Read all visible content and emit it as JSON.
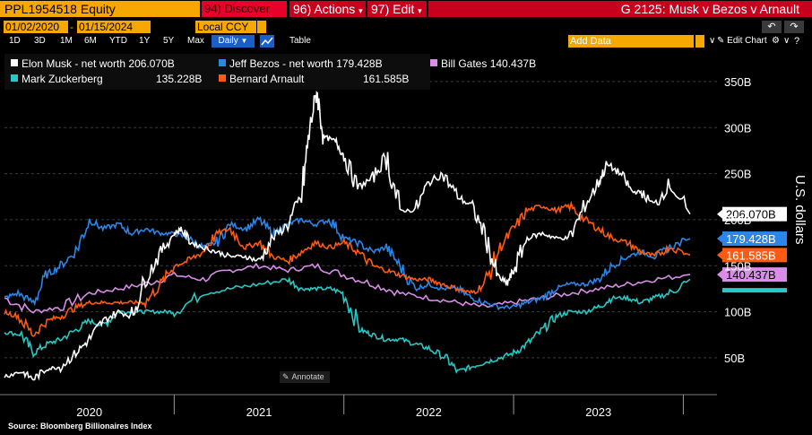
{
  "header": {
    "ticker": "PPL1954518 Equity",
    "discover": "94) Discover",
    "actions": "96) Actions",
    "edit": "97) Edit",
    "title": "G 2125: Musk v Bezos v Arnault"
  },
  "controls": {
    "start_date": "01/02/2020",
    "end_date": "01/15/2024",
    "currency": "Local CCY",
    "ranges": [
      "1D",
      "3D",
      "1M",
      "6M",
      "YTD",
      "1Y",
      "5Y",
      "Max"
    ],
    "frequency": "Daily",
    "table_label": "Table",
    "add_data_placeholder": "Add Data",
    "edit_chart": "Edit Chart",
    "annotate": "Annotate"
  },
  "source": "Source: Bloomberg Billionaires Index",
  "colors": {
    "musk": "#ffffff",
    "bezos": "#2a86e8",
    "gates": "#d98ce8",
    "zuckerberg": "#26c9c4",
    "arnault": "#ff5a12",
    "brand": "#f6a800",
    "red": "#c8001e"
  },
  "chart_data": {
    "type": "line",
    "title": "G 2125: Musk v Bezos v Arnault",
    "ylabel": "U.S. dollars",
    "xlabel": "",
    "ylim": [
      10,
      385
    ],
    "yticks": [
      {
        "value": 50,
        "label": "50B"
      },
      {
        "value": 100,
        "label": "100B"
      },
      {
        "value": 150,
        "label": "150B"
      },
      {
        "value": 200,
        "label": "200B"
      },
      {
        "value": 250,
        "label": "250B"
      },
      {
        "value": 300,
        "label": "300B"
      },
      {
        "value": 350,
        "label": "350B"
      }
    ],
    "xlim": [
      2020.0,
      2024.04
    ],
    "year_labels": [
      {
        "x": 2020.5,
        "label": "2020"
      },
      {
        "x": 2021.5,
        "label": "2021"
      },
      {
        "x": 2022.5,
        "label": "2022"
      },
      {
        "x": 2023.5,
        "label": "2023"
      }
    ],
    "year_ticks": [
      2021.0,
      2022.0,
      2023.0,
      2024.0
    ],
    "legend_position": "top-left",
    "series": [
      {
        "key": "musk",
        "name": "Elon Musk - net worth",
        "last_label": "206.070B",
        "last": 206.07,
        "x": [
          2020.0,
          2020.1,
          2020.17,
          2020.25,
          2020.33,
          2020.42,
          2020.5,
          2020.58,
          2020.67,
          2020.75,
          2020.83,
          2020.92,
          2021.0,
          2021.04,
          2021.1,
          2021.17,
          2021.25,
          2021.33,
          2021.42,
          2021.5,
          2021.58,
          2021.67,
          2021.75,
          2021.8,
          2021.84,
          2021.88,
          2021.95,
          2022.0,
          2022.08,
          2022.17,
          2022.25,
          2022.33,
          2022.42,
          2022.5,
          2022.58,
          2022.67,
          2022.75,
          2022.83,
          2022.9,
          2022.96,
          2023.0,
          2023.08,
          2023.17,
          2023.25,
          2023.33,
          2023.42,
          2023.5,
          2023.55,
          2023.63,
          2023.7,
          2023.75,
          2023.83,
          2023.92,
          2024.04
        ],
        "values": [
          30,
          35,
          27,
          38,
          40,
          55,
          70,
          90,
          100,
          95,
          135,
          165,
          185,
          190,
          175,
          170,
          165,
          160,
          160,
          155,
          180,
          195,
          225,
          300,
          340,
          290,
          285,
          270,
          235,
          245,
          270,
          210,
          210,
          240,
          250,
          225,
          215,
          185,
          140,
          130,
          145,
          180,
          185,
          180,
          180,
          215,
          240,
          260,
          250,
          230,
          230,
          215,
          240,
          206.07
        ]
      },
      {
        "key": "bezos",
        "name": "Jeff Bezos - net worth",
        "last_label": "179.428B",
        "last": 179.428,
        "x": [
          2020.0,
          2020.08,
          2020.17,
          2020.25,
          2020.33,
          2020.42,
          2020.5,
          2020.58,
          2020.67,
          2020.75,
          2020.83,
          2020.92,
          2021.0,
          2021.08,
          2021.17,
          2021.25,
          2021.33,
          2021.42,
          2021.5,
          2021.58,
          2021.67,
          2021.75,
          2021.83,
          2021.92,
          2022.0,
          2022.08,
          2022.17,
          2022.25,
          2022.33,
          2022.42,
          2022.5,
          2022.58,
          2022.67,
          2022.75,
          2022.83,
          2022.92,
          2023.0,
          2023.08,
          2023.17,
          2023.25,
          2023.33,
          2023.42,
          2023.5,
          2023.58,
          2023.67,
          2023.75,
          2023.83,
          2023.92,
          2024.04
        ],
        "values": [
          115,
          120,
          110,
          140,
          150,
          165,
          200,
          190,
          195,
          185,
          190,
          185,
          185,
          180,
          170,
          175,
          195,
          190,
          200,
          185,
          195,
          200,
          195,
          200,
          180,
          175,
          165,
          170,
          150,
          125,
          130,
          125,
          125,
          115,
          110,
          105,
          105,
          110,
          115,
          125,
          130,
          130,
          135,
          150,
          160,
          165,
          160,
          170,
          179.428
        ]
      },
      {
        "key": "gates",
        "name": "Bill Gates",
        "last_label": "140.437B",
        "last": 140.437,
        "x": [
          2020.0,
          2020.17,
          2020.33,
          2020.5,
          2020.67,
          2020.83,
          2021.0,
          2021.17,
          2021.33,
          2021.5,
          2021.67,
          2021.83,
          2022.0,
          2022.17,
          2022.33,
          2022.5,
          2022.67,
          2022.83,
          2023.0,
          2023.17,
          2023.33,
          2023.5,
          2023.67,
          2023.83,
          2024.04
        ],
        "values": [
          115,
          100,
          105,
          120,
          125,
          130,
          140,
          135,
          145,
          150,
          145,
          150,
          140,
          130,
          120,
          115,
          110,
          105,
          110,
          115,
          120,
          125,
          130,
          135,
          140.437
        ]
      },
      {
        "key": "zuckerberg",
        "name": "Mark Zuckerberg",
        "last_label": "135.228B",
        "last": 135.228,
        "x": [
          2020.0,
          2020.1,
          2020.17,
          2020.25,
          2020.33,
          2020.42,
          2020.5,
          2020.58,
          2020.67,
          2020.75,
          2020.83,
          2020.92,
          2021.0,
          2021.17,
          2021.33,
          2021.5,
          2021.67,
          2021.75,
          2021.83,
          2021.92,
          2022.0,
          2022.1,
          2022.17,
          2022.25,
          2022.33,
          2022.42,
          2022.5,
          2022.6,
          2022.67,
          2022.75,
          2022.83,
          2022.92,
          2023.0,
          2023.08,
          2023.17,
          2023.25,
          2023.33,
          2023.42,
          2023.5,
          2023.58,
          2023.67,
          2023.75,
          2023.83,
          2023.92,
          2024.04
        ],
        "values": [
          78,
          75,
          55,
          65,
          70,
          80,
          90,
          85,
          100,
          100,
          100,
          100,
          100,
          120,
          125,
          130,
          135,
          125,
          125,
          125,
          120,
          80,
          75,
          70,
          70,
          65,
          60,
          50,
          35,
          40,
          45,
          50,
          55,
          65,
          80,
          95,
          100,
          100,
          105,
          115,
          115,
          110,
          115,
          120,
          135.228
        ]
      },
      {
        "key": "arnault",
        "name": "Bernard Arnault",
        "last_label": "161.585B",
        "last": 161.585,
        "x": [
          2020.0,
          2020.08,
          2020.17,
          2020.25,
          2020.33,
          2020.42,
          2020.5,
          2020.58,
          2020.67,
          2020.75,
          2020.83,
          2020.92,
          2021.0,
          2021.08,
          2021.17,
          2021.25,
          2021.33,
          2021.42,
          2021.5,
          2021.58,
          2021.67,
          2021.75,
          2021.83,
          2021.92,
          2022.0,
          2022.08,
          2022.17,
          2022.25,
          2022.33,
          2022.42,
          2022.5,
          2022.58,
          2022.67,
          2022.75,
          2022.83,
          2022.92,
          2023.0,
          2023.08,
          2023.17,
          2023.25,
          2023.33,
          2023.42,
          2023.5,
          2023.58,
          2023.67,
          2023.75,
          2023.83,
          2023.92,
          2024.04
        ],
        "values": [
          100,
          95,
          75,
          90,
          95,
          105,
          110,
          110,
          110,
          110,
          110,
          130,
          150,
          155,
          165,
          185,
          190,
          170,
          175,
          160,
          155,
          165,
          175,
          170,
          175,
          165,
          150,
          145,
          140,
          135,
          135,
          130,
          125,
          120,
          130,
          170,
          190,
          210,
          215,
          210,
          215,
          200,
          190,
          180,
          175,
          165,
          160,
          170,
          161.585
        ]
      }
    ]
  }
}
